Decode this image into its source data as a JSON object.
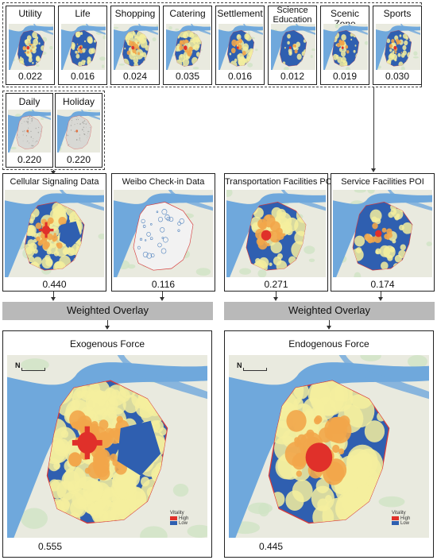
{
  "top_row": [
    {
      "label": "Utility",
      "value": "0.022"
    },
    {
      "label": "Life",
      "value": "0.016"
    },
    {
      "label": "Shopping",
      "value": "0.024"
    },
    {
      "label": "Catering",
      "value": "0.035"
    },
    {
      "label": "Settlement",
      "value": "0.016"
    },
    {
      "label": "Science\nEducation",
      "value": "0.012"
    },
    {
      "label": "Scenic Zone",
      "value": "0.019"
    },
    {
      "label": "Sports",
      "value": "0.030"
    }
  ],
  "time_row": [
    {
      "label": "Daily",
      "value": "0.220"
    },
    {
      "label": "Holiday",
      "value": "0.220"
    }
  ],
  "data_row": [
    {
      "label": "Cellular Signaling Data",
      "value": "0.440"
    },
    {
      "label": "Weibo Check-in Data",
      "value": "0.116"
    },
    {
      "label": "Transportation Facilities POI",
      "value": "0.271"
    },
    {
      "label": "Service Facilities POI",
      "value": "0.174"
    }
  ],
  "overlay_label": "Weighted Overlay",
  "forces": [
    {
      "label": "Exogenous Force",
      "value": "0.555"
    },
    {
      "label": "Endogenous Force",
      "value": "0.445"
    }
  ],
  "legend": {
    "title": "Vitality",
    "high": "High",
    "low": "Low"
  },
  "north_symbol": "N",
  "colors": {
    "water": "#6fa8dc",
    "land": "#e9eadf",
    "low": "#2f5fb0",
    "mid": "#f4ef9e",
    "high": "#e0302a",
    "border": "#d63a3a"
  }
}
